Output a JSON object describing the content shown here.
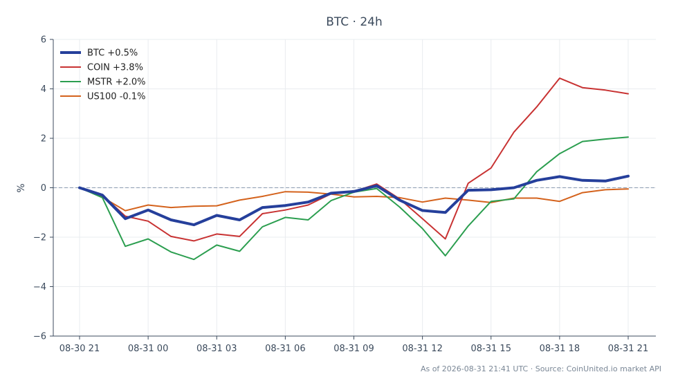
{
  "chart_data": {
    "type": "line",
    "title": "BTC · 24h",
    "xlabel": "",
    "ylabel": "%",
    "ylim": [
      -6,
      6
    ],
    "yticks": [
      "6",
      "4",
      "2",
      "0",
      "−2",
      "−4",
      "−6"
    ],
    "ytick_values": [
      6,
      4,
      2,
      0,
      -2,
      -4,
      -6
    ],
    "x": [
      0,
      1,
      2,
      3,
      4,
      5,
      6,
      7,
      8,
      9,
      10,
      11,
      12,
      13,
      14,
      15,
      16,
      17,
      18,
      19,
      20,
      21,
      22,
      23,
      24
    ],
    "xticks": [
      {
        "pos": 0,
        "label": "08-30 21"
      },
      {
        "pos": 3,
        "label": "08-31 00"
      },
      {
        "pos": 6,
        "label": "08-31 03"
      },
      {
        "pos": 9,
        "label": "08-31 06"
      },
      {
        "pos": 12,
        "label": "08-31 09"
      },
      {
        "pos": 15,
        "label": "08-31 12"
      },
      {
        "pos": 18,
        "label": "08-31 15"
      },
      {
        "pos": 21,
        "label": "08-31 18"
      },
      {
        "pos": 24,
        "label": "08-31 21"
      }
    ],
    "grid": true,
    "zero_line": true,
    "legend_position": "top-left",
    "series": [
      {
        "name": "BTC +0.5%",
        "color": "#253f9b",
        "width": 4,
        "values": [
          0.0,
          -0.3,
          -1.25,
          -0.9,
          -1.3,
          -1.5,
          -1.12,
          -1.3,
          -0.8,
          -0.72,
          -0.58,
          -0.22,
          -0.15,
          0.08,
          -0.5,
          -0.92,
          -1.0,
          -0.1,
          -0.08,
          0.0,
          0.3,
          0.45,
          0.3,
          0.27,
          0.47
        ]
      },
      {
        "name": "COIN +3.8%",
        "color": "#c83232",
        "width": 2,
        "values": [
          0.0,
          -0.3,
          -1.15,
          -1.35,
          -1.97,
          -2.15,
          -1.87,
          -1.97,
          -1.05,
          -0.9,
          -0.7,
          -0.25,
          -0.15,
          0.15,
          -0.45,
          -1.25,
          -2.07,
          0.18,
          0.8,
          2.25,
          3.27,
          4.43,
          4.05,
          3.95,
          3.8
        ]
      },
      {
        "name": "MSTR +2.0%",
        "color": "#2b9e4f",
        "width": 2,
        "values": [
          0.0,
          -0.4,
          -2.37,
          -2.07,
          -2.6,
          -2.9,
          -2.32,
          -2.57,
          -1.58,
          -1.2,
          -1.3,
          -0.52,
          -0.18,
          -0.03,
          -0.78,
          -1.65,
          -2.75,
          -1.55,
          -0.55,
          -0.45,
          0.65,
          1.38,
          1.87,
          1.97,
          2.05
        ]
      },
      {
        "name": "US100 -0.1%",
        "color": "#d4621c",
        "width": 2,
        "values": [
          0.0,
          -0.38,
          -0.93,
          -0.7,
          -0.8,
          -0.75,
          -0.73,
          -0.5,
          -0.35,
          -0.16,
          -0.18,
          -0.26,
          -0.37,
          -0.35,
          -0.4,
          -0.58,
          -0.42,
          -0.5,
          -0.6,
          -0.42,
          -0.42,
          -0.55,
          -0.2,
          -0.08,
          -0.05
        ]
      }
    ]
  },
  "footer": "As of 2026-08-31 21:41 UTC · Source: CoinUnited.io market API"
}
